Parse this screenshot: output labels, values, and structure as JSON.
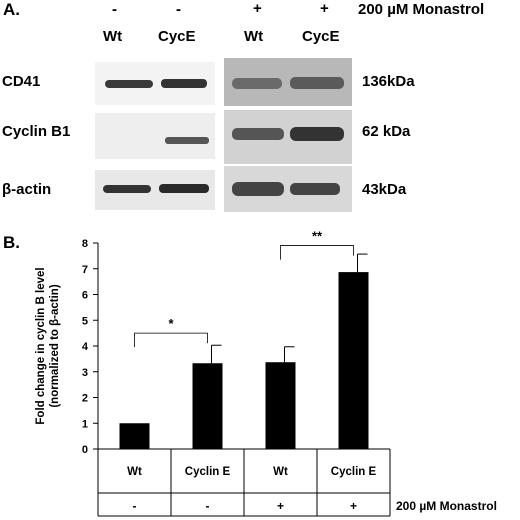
{
  "panel_a": {
    "label": "A.",
    "treatment_signs": [
      "-",
      "-",
      "+",
      "+"
    ],
    "treatment_label": "200 µM Monastrol",
    "lanes": [
      "Wt",
      "CycE",
      "Wt",
      "CycE"
    ],
    "rows": [
      {
        "protein": "CD41",
        "size": "136kDa"
      },
      {
        "protein": "Cyclin B1",
        "size": "62 kDa"
      },
      {
        "protein": "β-actin",
        "size": "43kDa"
      }
    ]
  },
  "chart_data": {
    "type": "bar",
    "panel_label": "B.",
    "categories": [
      "Wt",
      "Cyclin E",
      "Wt",
      "Cyclin E"
    ],
    "treatment_row": [
      "-",
      "-",
      "+",
      "+"
    ],
    "treatment_label": "200 µM Monastrol",
    "values": [
      1.0,
      3.33,
      3.37,
      6.87
    ],
    "errors": [
      0,
      0.7,
      0.6,
      0.7
    ],
    "ylabel_line1": "Fold change in cyclin B level",
    "ylabel_line2": "(normalized to  β-actin)",
    "ylim": [
      0,
      8
    ],
    "yticks": [
      "0",
      "1",
      "2",
      "3",
      "4",
      "5",
      "6",
      "7",
      "8"
    ],
    "significance": [
      {
        "from": 0,
        "to": 1,
        "label": "*"
      },
      {
        "from": 2,
        "to": 3,
        "label": "**"
      }
    ],
    "bar_color": "#000000",
    "grid": false
  }
}
